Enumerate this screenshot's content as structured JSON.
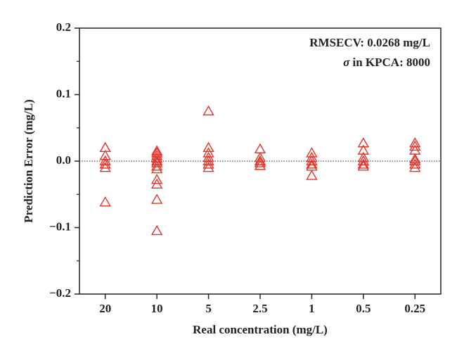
{
  "chart_data": {
    "type": "scatter",
    "x_label": "Real concentration (mg/L)",
    "y_label": "Prediction Error (mg/L)",
    "annotations": [
      "RMSECV: 0.0268 mg/L",
      {
        "symbol": "σ",
        "text": "in KPCA: 8000"
      }
    ],
    "categories": [
      "20",
      "10",
      "5",
      "2.5",
      "1",
      "0.5",
      "0.25"
    ],
    "values": [
      [
        0.02,
        0.008,
        0.0,
        -0.005,
        -0.01,
        -0.062
      ],
      [
        0.015,
        0.012,
        0.008,
        0.004,
        0.0,
        -0.003,
        -0.008,
        -0.012,
        -0.028,
        -0.035,
        -0.058,
        -0.105
      ],
      [
        0.075,
        0.02,
        0.012,
        0.005,
        0.0,
        -0.005,
        -0.01
      ],
      [
        0.018,
        0.005,
        0.0,
        -0.003,
        -0.007
      ],
      [
        0.012,
        0.005,
        0.0,
        -0.005,
        -0.008,
        -0.022
      ],
      [
        0.027,
        0.016,
        0.005,
        0.0,
        -0.005,
        -0.008
      ],
      [
        0.027,
        0.022,
        0.016,
        0.003,
        0.0,
        -0.005,
        -0.01
      ]
    ],
    "color": "#e5332a",
    "marker": "triangle",
    "ylim": [
      -0.2,
      0.2
    ],
    "yticks": [
      {
        "value": -0.2,
        "label": "−0.2"
      },
      {
        "value": -0.1,
        "label": "−0.1"
      },
      {
        "value": 0,
        "label": "0.0"
      },
      0.1,
      0.2
    ],
    "yminorticks": [
      -0.15,
      -0.05,
      0.05,
      0.15
    ],
    "zero_line": true
  }
}
